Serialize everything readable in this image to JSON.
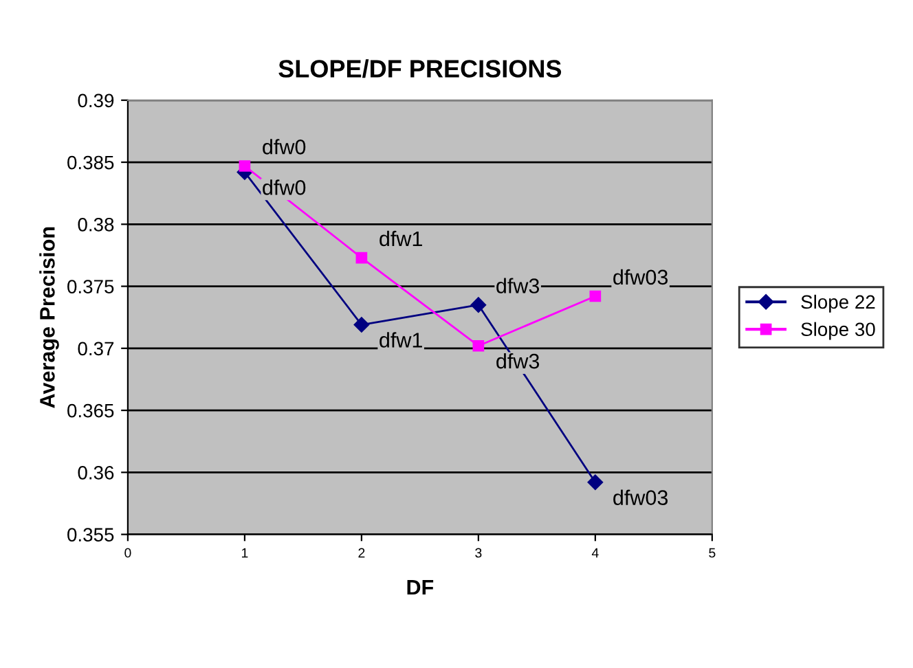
{
  "chart_data": {
    "type": "line",
    "title": "SLOPE/DF PRECISIONS",
    "xlabel": "DF",
    "ylabel": "Average Precision",
    "x": [
      1,
      2,
      3,
      4
    ],
    "series": [
      {
        "name": "Slope 22",
        "color": "#000080",
        "marker": "diamond",
        "values": [
          0.3842,
          0.3719,
          0.3735,
          0.3592
        ]
      },
      {
        "name": "Slope 30",
        "color": "#ff00ff",
        "marker": "square",
        "values": [
          0.3847,
          0.3773,
          0.3702,
          0.3742
        ]
      }
    ],
    "annotations": [
      {
        "text": "dfw0",
        "x": 1,
        "y": 0.3842
      },
      {
        "text": "dfw1",
        "x": 2,
        "y": 0.3719
      },
      {
        "text": "dfw3",
        "x": 3,
        "y": 0.3735
      },
      {
        "text": "dfw03",
        "x": 4,
        "y": 0.3592
      },
      {
        "text": "dfw0",
        "x": 1,
        "y": 0.3847
      },
      {
        "text": "dfw1",
        "x": 2,
        "y": 0.3773
      },
      {
        "text": "dfw3",
        "x": 3,
        "y": 0.3702
      },
      {
        "text": "dfw03",
        "x": 4,
        "y": 0.3742
      }
    ],
    "xlim": [
      0,
      5
    ],
    "xticks": [
      0,
      1,
      2,
      3,
      4,
      5
    ],
    "ylim": [
      0.355,
      0.39
    ],
    "yticks": [
      0.355,
      0.36,
      0.365,
      0.37,
      0.375,
      0.38,
      0.385,
      0.39
    ],
    "grid": "y",
    "legend": "right",
    "line_style": "solid"
  }
}
